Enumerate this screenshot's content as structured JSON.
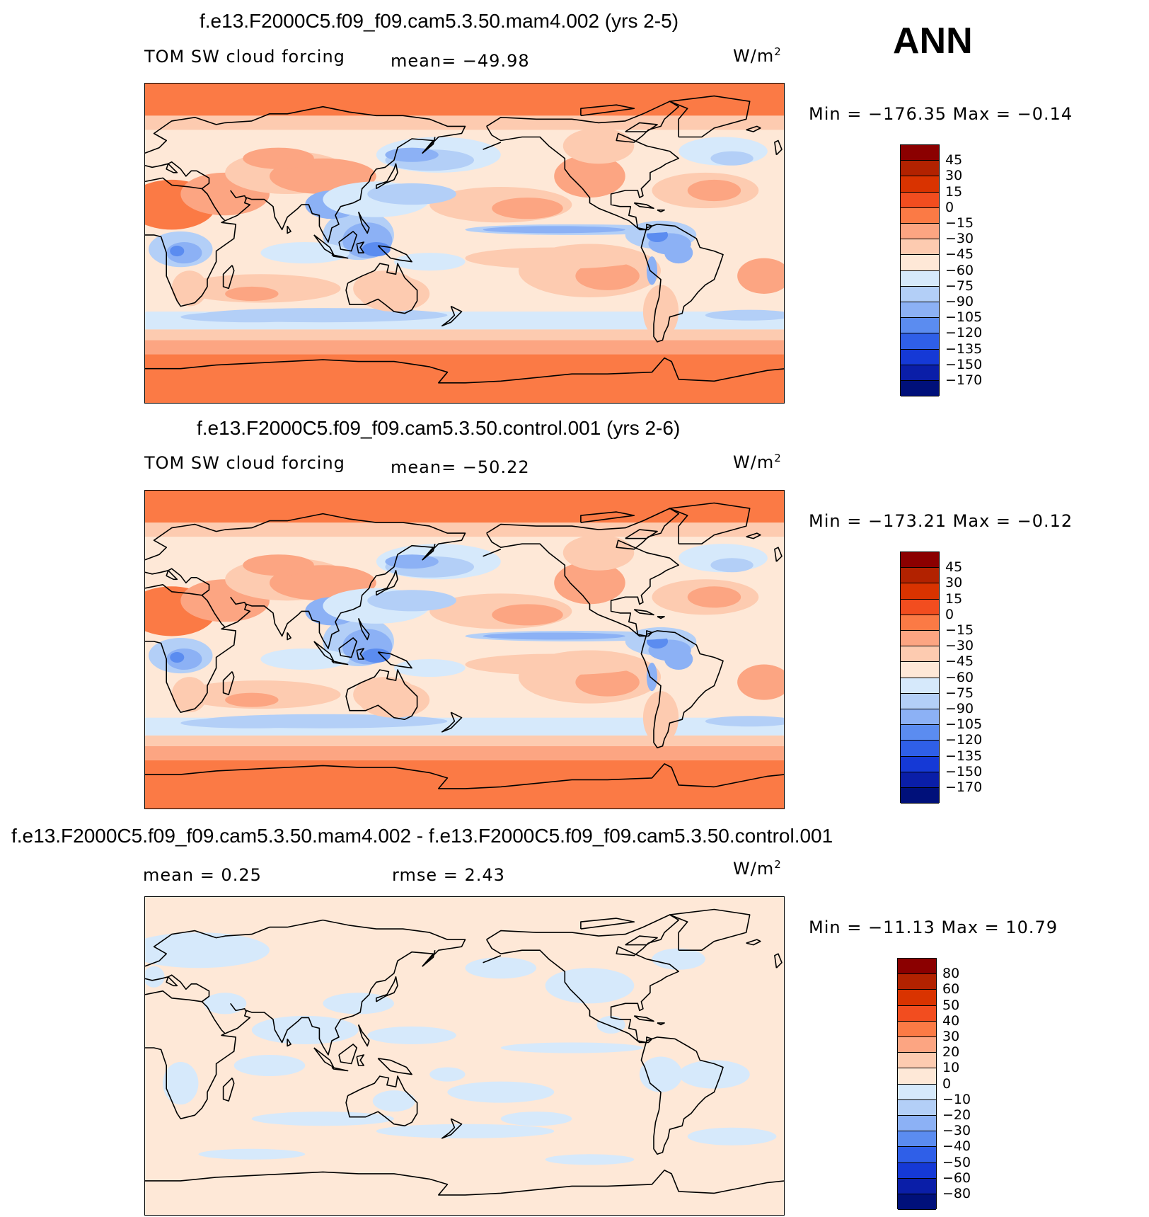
{
  "season": "ANN",
  "units_base": "W/m",
  "units_exp": "2",
  "panels": [
    {
      "title": "f.e13.F2000C5.f09_f09.cam5.3.50.mam4.002 (yrs 2-5)",
      "variable": "TOM SW cloud forcing",
      "stat1": "mean= −49.98",
      "stat2": "",
      "minmax": "Min = −176.35 Max =  −0.14",
      "levels": [
        "45",
        "30",
        "15",
        "0",
        "−15",
        "−30",
        "−45",
        "−60",
        "−75",
        "−90",
        "−105",
        "−120",
        "−135",
        "−150",
        "−170"
      ],
      "kind": "abs"
    },
    {
      "title": "f.e13.F2000C5.f09_f09.cam5.3.50.control.001 (yrs 2-6)",
      "variable": "TOM SW cloud forcing",
      "stat1": "mean= −50.22",
      "stat2": "",
      "minmax": "Min = −173.21 Max =  −0.12",
      "levels": [
        "45",
        "30",
        "15",
        "0",
        "−15",
        "−30",
        "−45",
        "−60",
        "−75",
        "−90",
        "−105",
        "−120",
        "−135",
        "−150",
        "−170"
      ],
      "kind": "abs"
    },
    {
      "title": "f.e13.F2000C5.f09_f09.cam5.3.50.mam4.002 - f.e13.F2000C5.f09_f09.cam5.3.50.control.001",
      "variable": "",
      "stat1": "mean =   0.25",
      "stat2": "rmse =   2.43",
      "minmax": "Min = −11.13 Max =  10.79",
      "levels": [
        "80",
        "60",
        "50",
        "40",
        "30",
        "20",
        "10",
        "0",
        "−10",
        "−20",
        "−30",
        "−40",
        "−50",
        "−60",
        "−80"
      ],
      "kind": "diff"
    }
  ],
  "colorbar_colors": [
    "#8b0000",
    "#b22200",
    "#d93300",
    "#f24d1f",
    "#fb7a45",
    "#fca582",
    "#fdcbb0",
    "#fee8d7",
    "#d6e9fb",
    "#b3cff7",
    "#8cb1f5",
    "#5b8cf0",
    "#2f5fe8",
    "#1539d6",
    "#0a1ea8",
    "#00107a"
  ],
  "field_colors": {
    "abs": {
      "base": "#fee8d7",
      "a": "#fb7a45",
      "b": "#fca582",
      "c": "#fdcbb0",
      "d": "#d6e9fb",
      "e": "#b3cff7",
      "f": "#8cb1f5",
      "g": "#5b8cf0",
      "h": "#2f5fe8",
      "i": "#1539d6"
    },
    "diff": {
      "base": "#fee8d7",
      "cool": "#d6e9fb"
    }
  },
  "chart_data": [
    {
      "type": "heatmap",
      "title": "f.e13.F2000C5.f09_f09.cam5.3.50.mam4.002 (yrs 2-5)",
      "variable": "TOM SW cloud forcing",
      "units": "W/m2",
      "mean": -49.98,
      "min": -176.35,
      "max": -0.14,
      "contour_levels": [
        45,
        30,
        15,
        0,
        -15,
        -30,
        -45,
        -60,
        -75,
        -90,
        -105,
        -120,
        -135,
        -150,
        -170
      ]
    },
    {
      "type": "heatmap",
      "title": "f.e13.F2000C5.f09_f09.cam5.3.50.control.001 (yrs 2-6)",
      "variable": "TOM SW cloud forcing",
      "units": "W/m2",
      "mean": -50.22,
      "min": -173.21,
      "max": -0.12,
      "contour_levels": [
        45,
        30,
        15,
        0,
        -15,
        -30,
        -45,
        -60,
        -75,
        -90,
        -105,
        -120,
        -135,
        -150,
        -170
      ]
    },
    {
      "type": "heatmap",
      "title": "f.e13.F2000C5.f09_f09.cam5.3.50.mam4.002 - f.e13.F2000C5.f09_f09.cam5.3.50.control.001",
      "units": "W/m2",
      "mean": 0.25,
      "rmse": 2.43,
      "min": -11.13,
      "max": 10.79,
      "contour_levels": [
        80,
        60,
        50,
        40,
        30,
        20,
        10,
        0,
        -10,
        -20,
        -30,
        -40,
        -50,
        -60,
        -80
      ]
    }
  ]
}
